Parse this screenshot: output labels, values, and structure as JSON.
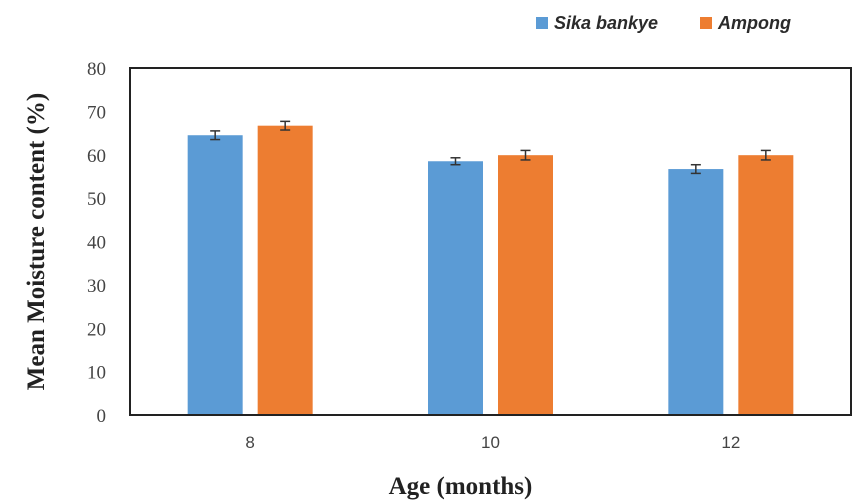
{
  "chart_data": {
    "type": "bar",
    "title": "",
    "xlabel": "Age (months)",
    "ylabel": "Mean Moisture content  (%)",
    "categories": [
      "8",
      "10",
      "12"
    ],
    "ylim": [
      0,
      80
    ],
    "yticks": [
      0,
      10,
      20,
      30,
      40,
      50,
      60,
      70,
      80
    ],
    "legend_position": "top-right",
    "grid": false,
    "series": [
      {
        "name": "Sika bankye",
        "color": "#5b9bd5",
        "values": [
          64.5,
          58.5,
          56.7
        ],
        "errors": [
          1.0,
          0.8,
          1.0
        ]
      },
      {
        "name": "Ampong",
        "color": "#ed7d31",
        "values": [
          66.7,
          59.9,
          59.9
        ],
        "errors": [
          1.0,
          1.1,
          1.1
        ]
      }
    ]
  }
}
